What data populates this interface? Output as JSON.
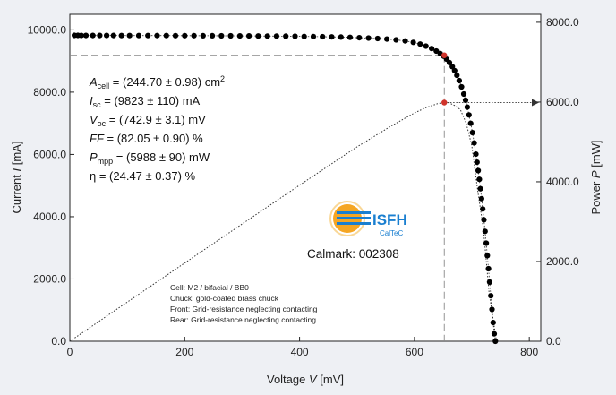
{
  "chart_data": {
    "type": "scatter",
    "xlabel": "Voltage V [mV]",
    "ylabel_left": "Current I [mA]",
    "ylabel_right": "Power P [mW]",
    "xlim": [
      0,
      820
    ],
    "ylim_left": [
      0,
      10500
    ],
    "ylim_right": [
      0,
      8200
    ],
    "x_ticks": [
      "0",
      "200",
      "400",
      "600",
      "800"
    ],
    "y_left_ticks": [
      "0.0",
      "2000.0",
      "4000.0",
      "6000.0",
      "8000.0",
      "10000.0"
    ],
    "y_right_ticks": [
      "0.0",
      "2000.0",
      "4000.0",
      "6000.0",
      "8000.0"
    ],
    "grid": false,
    "series": [
      {
        "name": "I-V curve",
        "marker": "circle",
        "color": "#000000",
        "x": [
          8,
          14,
          20,
          28,
          40,
          52,
          64,
          76,
          90,
          104,
          120,
          136,
          152,
          168,
          184,
          200,
          216,
          232,
          248,
          264,
          280,
          296,
          312,
          328,
          344,
          360,
          376,
          392,
          408,
          424,
          440,
          456,
          472,
          488,
          504,
          520,
          536,
          552,
          568,
          584,
          598,
          610,
          620,
          630,
          638,
          645,
          651,
          656,
          661,
          666,
          670,
          674,
          678,
          682,
          686,
          689,
          692,
          695,
          698,
          701,
          704,
          707,
          709,
          711,
          713,
          715,
          717,
          719,
          721,
          723,
          725,
          727,
          729,
          731,
          733,
          735,
          737,
          739,
          741
        ],
        "y": [
          9823,
          9823,
          9822,
          9822,
          9821,
          9821,
          9820,
          9820,
          9819,
          9819,
          9818,
          9818,
          9817,
          9817,
          9816,
          9815,
          9814,
          9813,
          9812,
          9811,
          9810,
          9808,
          9806,
          9804,
          9802,
          9800,
          9797,
          9794,
          9790,
          9786,
          9781,
          9775,
          9768,
          9760,
          9750,
          9738,
          9724,
          9705,
          9680,
          9645,
          9600,
          9545,
          9480,
          9400,
          9320,
          9240,
          9155,
          9060,
          8950,
          8820,
          8690,
          8540,
          8370,
          8170,
          7940,
          7740,
          7520,
          7270,
          7000,
          6700,
          6370,
          6010,
          5750,
          5480,
          5200,
          4900,
          4580,
          4250,
          3900,
          3530,
          3150,
          2750,
          2330,
          1900,
          1460,
          1020,
          600,
          240,
          0
        ]
      },
      {
        "name": "P-V curve",
        "style": "dotted",
        "color": "#333333",
        "x": [
          0,
          100,
          200,
          300,
          400,
          500,
          560,
          600,
          620,
          640,
          652,
          660,
          670,
          680,
          690,
          700,
          710,
          720,
          730,
          742.9
        ],
        "y": [
          0,
          982,
          1963,
          2941,
          3915,
          4875,
          5404,
          5727,
          5859,
          5958,
          5988,
          5980,
          5912,
          5810,
          5478,
          4900,
          3804,
          2828,
          1212,
          0
        ]
      }
    ],
    "mpp": {
      "voltage": 652,
      "current": 9184,
      "power": 5988
    },
    "annotations": {
      "stats": [
        "A_cell = (244.70 ± 0.98) cm²",
        "I_sc = (9823 ± 110) mA",
        "V_oc = (742.9 ± 3.1) mV",
        "FF = (82.05 ± 0.90) %",
        "P_mpp = (5988 ± 90) mW",
        "η = (24.47 ± 0.37) %"
      ],
      "notes": [
        "Cell: M2 / bifacial / BB0",
        "Chuck: gold-coated brass chuck",
        "Front: Grid-resistance neglecting contacting",
        "Rear: Grid-resistance neglecting contacting"
      ]
    }
  },
  "labels": {
    "xlabel_prefix": "Voltage ",
    "xlabel_var": "V",
    "xlabel_unit": " [mV]",
    "ylabel_left_prefix": "Current ",
    "ylabel_left_var": "I",
    "ylabel_left_unit": " [mA]",
    "ylabel_right_prefix": "Power ",
    "ylabel_right_var": "P",
    "ylabel_right_unit": " [mW]"
  },
  "stats": {
    "acell_sym": "A",
    "acell_sub": "cell",
    "acell_val": " = (244.70 ± 0.98) cm",
    "acell_sup": "2",
    "isc_sym": "I",
    "isc_sub": "sc",
    "isc_val": " = (9823 ± 110) mA",
    "voc_sym": "V",
    "voc_sub": "oc",
    "voc_val": " = (742.9 ± 3.1) mV",
    "ff_sym": "FF",
    "ff_val": " = (82.05 ± 0.90) %",
    "pmpp_sym": "P",
    "pmpp_sub": "mpp",
    "pmpp_val": " = (5988 ± 90) mW",
    "eta_line": "η = (24.47 ± 0.37) %"
  },
  "logo": {
    "name": "ISFH",
    "sub": "CalTeC",
    "accent": "#1a7fd0",
    "sun": "#f5a623"
  },
  "calmark": "Calmark: 002308",
  "notes": {
    "line1": "Cell: M2 / bifacial / BB0",
    "line2": "Chuck: gold-coated brass chuck",
    "line3": "Front: Grid-resistance neglecting contacting",
    "line4": "Rear: Grid-resistance neglecting contacting"
  },
  "colors": {
    "background": "#eef0f4",
    "plot_bg": "#ffffff",
    "mpp_marker": "#d0342c",
    "guide": "#888888"
  }
}
